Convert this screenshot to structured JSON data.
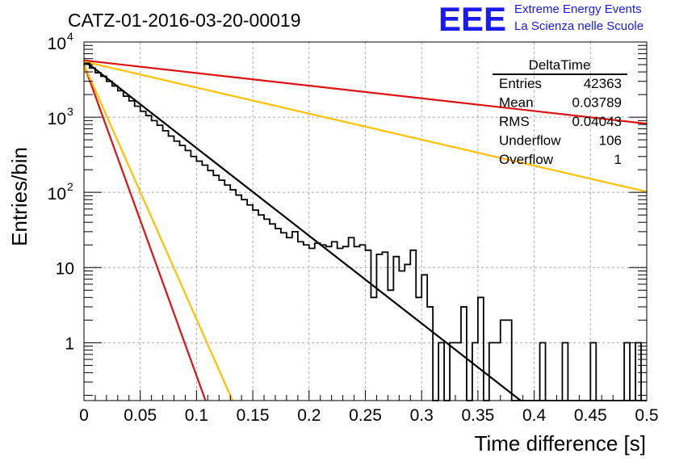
{
  "chart_data": {
    "type": "histogram",
    "title": "CATZ-01-2016-03-20-00019",
    "xlabel": "Time difference [s]",
    "ylabel": "Entries/bin",
    "xlim": [
      0,
      0.5
    ],
    "ylim": [
      0.17,
      10000
    ],
    "y_scale": "log",
    "grid": true,
    "x_ticks": [
      "0",
      "0.05",
      "0.1",
      "0.15",
      "0.2",
      "0.25",
      "0.3",
      "0.35",
      "0.4",
      "0.45",
      "0.5"
    ],
    "y_tick_labels": [
      {
        "value": 1,
        "label": "1"
      },
      {
        "value": 10,
        "label": "10"
      },
      {
        "value": 100,
        "base": "10",
        "exp": "2"
      },
      {
        "value": 1000,
        "base": "10",
        "exp": "3"
      },
      {
        "value": 10000,
        "base": "10",
        "exp": "4"
      }
    ],
    "logo": {
      "text": "EEE",
      "line1": "Extreme Energy Events",
      "line2": "La Scienza nelle Scuole",
      "color": "#1a1aee"
    },
    "stats_box": {
      "name": "DeltaTime",
      "rows": [
        {
          "label": "Entries",
          "value": "42363"
        },
        {
          "label": "Mean",
          "value": "0.03789"
        },
        {
          "label": "RMS",
          "value": "0.04043"
        },
        {
          "label": "Underflow",
          "value": "106"
        },
        {
          "label": "Overflow",
          "value": "1"
        }
      ]
    },
    "histogram": {
      "bin_width": 0.005,
      "counts": [
        5200,
        4500,
        3900,
        3500,
        3000,
        2600,
        2250,
        1900,
        1650,
        1400,
        1200,
        1050,
        900,
        780,
        660,
        560,
        480,
        420,
        360,
        300,
        260,
        230,
        195,
        168,
        145,
        125,
        108,
        92,
        80,
        68,
        58,
        50,
        44,
        38,
        33,
        29,
        25,
        30,
        22,
        20,
        18,
        21,
        20,
        19,
        22,
        18,
        19,
        25,
        19,
        20,
        17,
        4,
        15,
        16,
        5,
        14,
        9,
        11,
        17,
        4,
        8,
        3,
        0.1,
        1,
        0.1,
        1,
        1,
        3,
        0.1,
        1,
        4,
        0.1,
        1,
        1,
        2,
        2,
        0.1,
        0.1,
        0.1,
        0.1,
        0.1,
        0.1,
        0.1,
        0.1,
        0.1,
        0.1,
        0.1,
        0.1,
        0.1,
        0.1,
        0.1,
        0.1,
        0.1,
        0.1,
        0.1,
        0.1,
        0.1,
        0.1,
        0.1,
        0.1
      ],
      "spikes": [
        {
          "x": 0.4075,
          "value": 1
        },
        {
          "x": 0.4275,
          "value": 1
        },
        {
          "x": 0.4525,
          "value": 1
        },
        {
          "x": 0.4825,
          "value": 1
        },
        {
          "x": 0.4925,
          "value": 1
        }
      ],
      "color": "#000000"
    },
    "series": [
      {
        "points": [
          [
            0,
            5700
          ],
          [
            0.388,
            0.17
          ]
        ],
        "color": "#000000"
      },
      {
        "points": [
          [
            0,
            5700
          ],
          [
            0.5,
            820
          ]
        ],
        "color": "#dd1111"
      },
      {
        "points": [
          [
            0,
            5500
          ],
          [
            0.5,
            102
          ]
        ],
        "color": "#ffc000"
      },
      {
        "points": [
          [
            0,
            5000
          ],
          [
            0.108,
            0.17
          ]
        ],
        "color": "#dd1111"
      },
      {
        "points": [
          [
            0,
            5000
          ],
          [
            0.132,
            0.17
          ]
        ],
        "color": "#ffc000"
      }
    ]
  }
}
